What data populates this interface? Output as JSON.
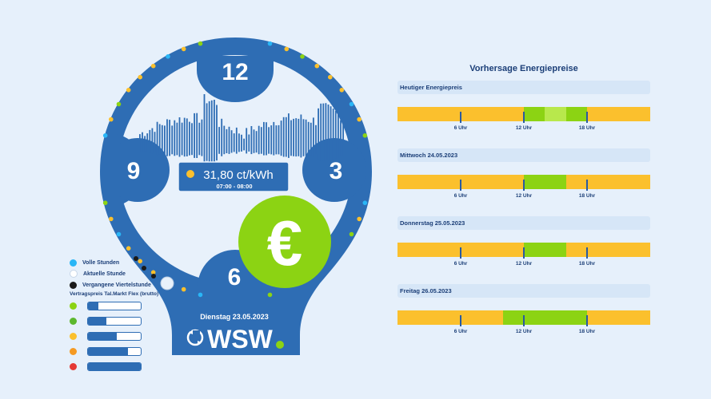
{
  "clock": {
    "numbers": {
      "top": "12",
      "right": "3",
      "bottom": "6",
      "left": "9"
    },
    "price": "31,80 ct/kWh",
    "time_range": "07:00 - 08:00",
    "date": "Dienstag 23.05.2023",
    "brand": "WSW",
    "currency_symbol": "€"
  },
  "legend": {
    "items": [
      {
        "label": "Volle Stunden",
        "color": "#29b6f6"
      },
      {
        "label": "Aktuelle Stunde",
        "color": "#ffffff"
      },
      {
        "label": "Vergangene Viertelstunde",
        "color": "#1a1a1a"
      }
    ],
    "tier_title": "Vertragspreis Tal.Markt Flex (brutto)",
    "tiers": [
      {
        "color": "#8cd313",
        "fill": 0.2
      },
      {
        "color": "#5cb82e",
        "fill": 0.35
      },
      {
        "color": "#fbc02d",
        "fill": 0.55
      },
      {
        "color": "#f59a23",
        "fill": 0.75
      },
      {
        "color": "#e53935",
        "fill": 1.0
      }
    ]
  },
  "forecast": {
    "title": "Vorhersage Energiepreise",
    "tick_labels": [
      "6 Uhr",
      "12 Uhr",
      "18 Uhr"
    ],
    "days": [
      {
        "label": "Heutiger Energiepreis",
        "segments": [
          "#fbc02d",
          "#fbc02d",
          "#fbc02d",
          "#fbc02d",
          "#fbc02d",
          "#fbc02d",
          "#fbc02d",
          "#fbc02d",
          "#fbc02d",
          "#fbc02d",
          "#fbc02d",
          "#fbc02d",
          "#8cd313",
          "#8cd313",
          "#b8e84c",
          "#b8e84c",
          "#8cd313",
          "#8cd313",
          "#fbc02d",
          "#fbc02d",
          "#fbc02d",
          "#fbc02d",
          "#fbc02d",
          "#fbc02d"
        ]
      },
      {
        "label": "Mittwoch 24.05.2023",
        "segments": [
          "#fbc02d",
          "#fbc02d",
          "#fbc02d",
          "#fbc02d",
          "#fbc02d",
          "#fbc02d",
          "#fbc02d",
          "#fbc02d",
          "#fbc02d",
          "#fbc02d",
          "#fbc02d",
          "#fbc02d",
          "#8cd313",
          "#8cd313",
          "#8cd313",
          "#8cd313",
          "#fbc02d",
          "#fbc02d",
          "#fbc02d",
          "#fbc02d",
          "#fbc02d",
          "#fbc02d",
          "#fbc02d",
          "#fbc02d"
        ]
      },
      {
        "label": "Donnerstag 25.05.2023",
        "segments": [
          "#fbc02d",
          "#fbc02d",
          "#fbc02d",
          "#fbc02d",
          "#fbc02d",
          "#fbc02d",
          "#fbc02d",
          "#fbc02d",
          "#fbc02d",
          "#fbc02d",
          "#fbc02d",
          "#fbc02d",
          "#8cd313",
          "#8cd313",
          "#8cd313",
          "#8cd313",
          "#fbc02d",
          "#fbc02d",
          "#fbc02d",
          "#fbc02d",
          "#fbc02d",
          "#fbc02d",
          "#fbc02d",
          "#fbc02d"
        ]
      },
      {
        "label": "Freitag 26.05.2023",
        "segments": [
          "#fbc02d",
          "#fbc02d",
          "#fbc02d",
          "#fbc02d",
          "#fbc02d",
          "#fbc02d",
          "#fbc02d",
          "#fbc02d",
          "#fbc02d",
          "#fbc02d",
          "#8cd313",
          "#8cd313",
          "#8cd313",
          "#8cd313",
          "#8cd313",
          "#8cd313",
          "#8cd313",
          "#8cd313",
          "#fbc02d",
          "#fbc02d",
          "#fbc02d",
          "#fbc02d",
          "#fbc02d",
          "#fbc02d"
        ]
      }
    ]
  },
  "colors": {
    "primary": "#2e6db4",
    "dark": "#1c3f78",
    "green": "#8cd313",
    "yellow": "#fbc02d"
  }
}
